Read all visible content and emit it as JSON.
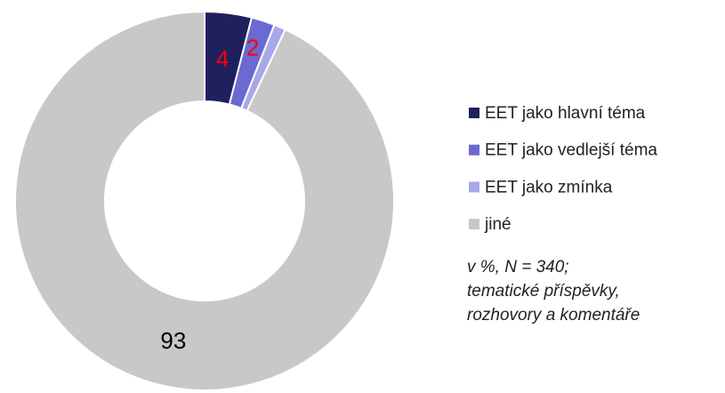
{
  "chart_data": {
    "type": "donut",
    "categories": [
      "EET jako hlavní téma",
      "EET jako vedlejší téma",
      "EET jako zmínka",
      "jiné"
    ],
    "values": [
      4,
      2,
      1,
      93
    ],
    "colors": [
      "#20205e",
      "#6a6ad2",
      "#a8a8e8",
      "#c8c8c8"
    ],
    "label_colors": [
      "#ff0000",
      "#ff0000",
      "#ff0000",
      "#000000"
    ],
    "legend": "right",
    "annotation": [
      "v %, N = 340;",
      "tematické příspěvky,",
      "rozhovory a komentáře"
    ]
  }
}
